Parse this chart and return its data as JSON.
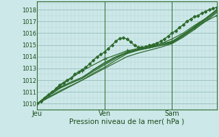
{
  "xlabel": "Pression niveau de la mer( hPa )",
  "bg_color": "#cce8e8",
  "grid_color_major": "#99bbbb",
  "grid_color_minor": "#b8d4d4",
  "line_color": "#2d6a2d",
  "ylim": [
    1009.5,
    1018.7
  ],
  "xlim": [
    0,
    48
  ],
  "x_ticks": [
    0,
    18,
    36,
    48
  ],
  "x_tick_labels": [
    "Jeu",
    "Ven",
    "Sam",
    ""
  ],
  "y_ticks": [
    1010,
    1011,
    1012,
    1013,
    1014,
    1015,
    1016,
    1017,
    1018
  ],
  "lines": [
    {
      "x": [
        0,
        1,
        2,
        3,
        4,
        5,
        6,
        7,
        8,
        9,
        10,
        11,
        12,
        13,
        14,
        15,
        16,
        17,
        18,
        19,
        20,
        21,
        22,
        23,
        24,
        25,
        26,
        27,
        28,
        29,
        30,
        31,
        32,
        33,
        34,
        35,
        36,
        37,
        38,
        39,
        40,
        41,
        42,
        43,
        44,
        45,
        46,
        47,
        48
      ],
      "y": [
        1010.0,
        1010.2,
        1010.5,
        1010.8,
        1011.0,
        1011.3,
        1011.6,
        1011.8,
        1012.0,
        1012.2,
        1012.5,
        1012.7,
        1012.9,
        1013.1,
        1013.4,
        1013.7,
        1014.0,
        1014.2,
        1014.4,
        1014.7,
        1015.0,
        1015.3,
        1015.55,
        1015.6,
        1015.5,
        1015.25,
        1014.95,
        1014.8,
        1014.8,
        1014.85,
        1014.95,
        1015.05,
        1015.15,
        1015.3,
        1015.5,
        1015.75,
        1016.0,
        1016.2,
        1016.5,
        1016.7,
        1017.0,
        1017.2,
        1017.4,
        1017.5,
        1017.7,
        1017.85,
        1018.0,
        1018.1,
        1018.2
      ],
      "marker": "D",
      "ms": 2.0,
      "lw": 1.0
    },
    {
      "x": [
        0,
        6,
        12,
        18,
        24,
        30,
        36,
        42,
        48
      ],
      "y": [
        1010.0,
        1011.5,
        1012.8,
        1013.8,
        1014.5,
        1014.9,
        1015.3,
        1016.5,
        1017.5
      ],
      "marker": "+",
      "ms": 4,
      "lw": 0.9
    },
    {
      "x": [
        0,
        3,
        6,
        9,
        12,
        15,
        18,
        21,
        24,
        27,
        30,
        33,
        36,
        39,
        42,
        45,
        48
      ],
      "y": [
        1010.0,
        1010.5,
        1011.0,
        1011.5,
        1012.0,
        1012.5,
        1013.0,
        1013.5,
        1014.0,
        1014.3,
        1014.55,
        1014.8,
        1015.1,
        1015.65,
        1016.3,
        1017.0,
        1017.75
      ],
      "marker": null,
      "ms": 0,
      "lw": 0.9
    },
    {
      "x": [
        0,
        3,
        6,
        9,
        12,
        15,
        18,
        21,
        24,
        27,
        30,
        33,
        36,
        39,
        42,
        45,
        48
      ],
      "y": [
        1010.0,
        1010.55,
        1011.1,
        1011.55,
        1012.0,
        1012.6,
        1013.1,
        1013.7,
        1014.25,
        1014.55,
        1014.75,
        1014.95,
        1015.2,
        1015.75,
        1016.4,
        1017.1,
        1017.85
      ],
      "marker": null,
      "ms": 0,
      "lw": 0.9
    },
    {
      "x": [
        0,
        3,
        6,
        9,
        12,
        15,
        18,
        21,
        24,
        27,
        30,
        33,
        36,
        39,
        42,
        45,
        48
      ],
      "y": [
        1010.0,
        1010.65,
        1011.3,
        1011.75,
        1012.15,
        1012.75,
        1013.3,
        1013.85,
        1014.35,
        1014.6,
        1014.75,
        1014.95,
        1015.15,
        1015.75,
        1016.5,
        1017.2,
        1017.95
      ],
      "marker": null,
      "ms": 0,
      "lw": 0.9
    },
    {
      "x": [
        0,
        3,
        6,
        9,
        12,
        15,
        18,
        21,
        24,
        27,
        30,
        33,
        36,
        39,
        42,
        45,
        48
      ],
      "y": [
        1010.0,
        1010.75,
        1011.4,
        1011.85,
        1012.25,
        1012.85,
        1013.4,
        1013.95,
        1014.3,
        1014.55,
        1014.75,
        1015.0,
        1015.25,
        1015.85,
        1016.55,
        1017.25,
        1018.0
      ],
      "marker": null,
      "ms": 0,
      "lw": 0.9
    },
    {
      "x": [
        0,
        3,
        6,
        9,
        12,
        15,
        18,
        21,
        24,
        27,
        30,
        33,
        36,
        39,
        42,
        45,
        48
      ],
      "y": [
        1010.0,
        1010.8,
        1011.35,
        1011.75,
        1012.15,
        1012.9,
        1013.5,
        1014.0,
        1014.4,
        1014.65,
        1014.8,
        1015.1,
        1015.5,
        1016.0,
        1016.65,
        1017.25,
        1018.0
      ],
      "marker": null,
      "ms": 0,
      "lw": 0.9
    }
  ],
  "vline_x": [
    18,
    36
  ],
  "vline_color": "#3a703a"
}
